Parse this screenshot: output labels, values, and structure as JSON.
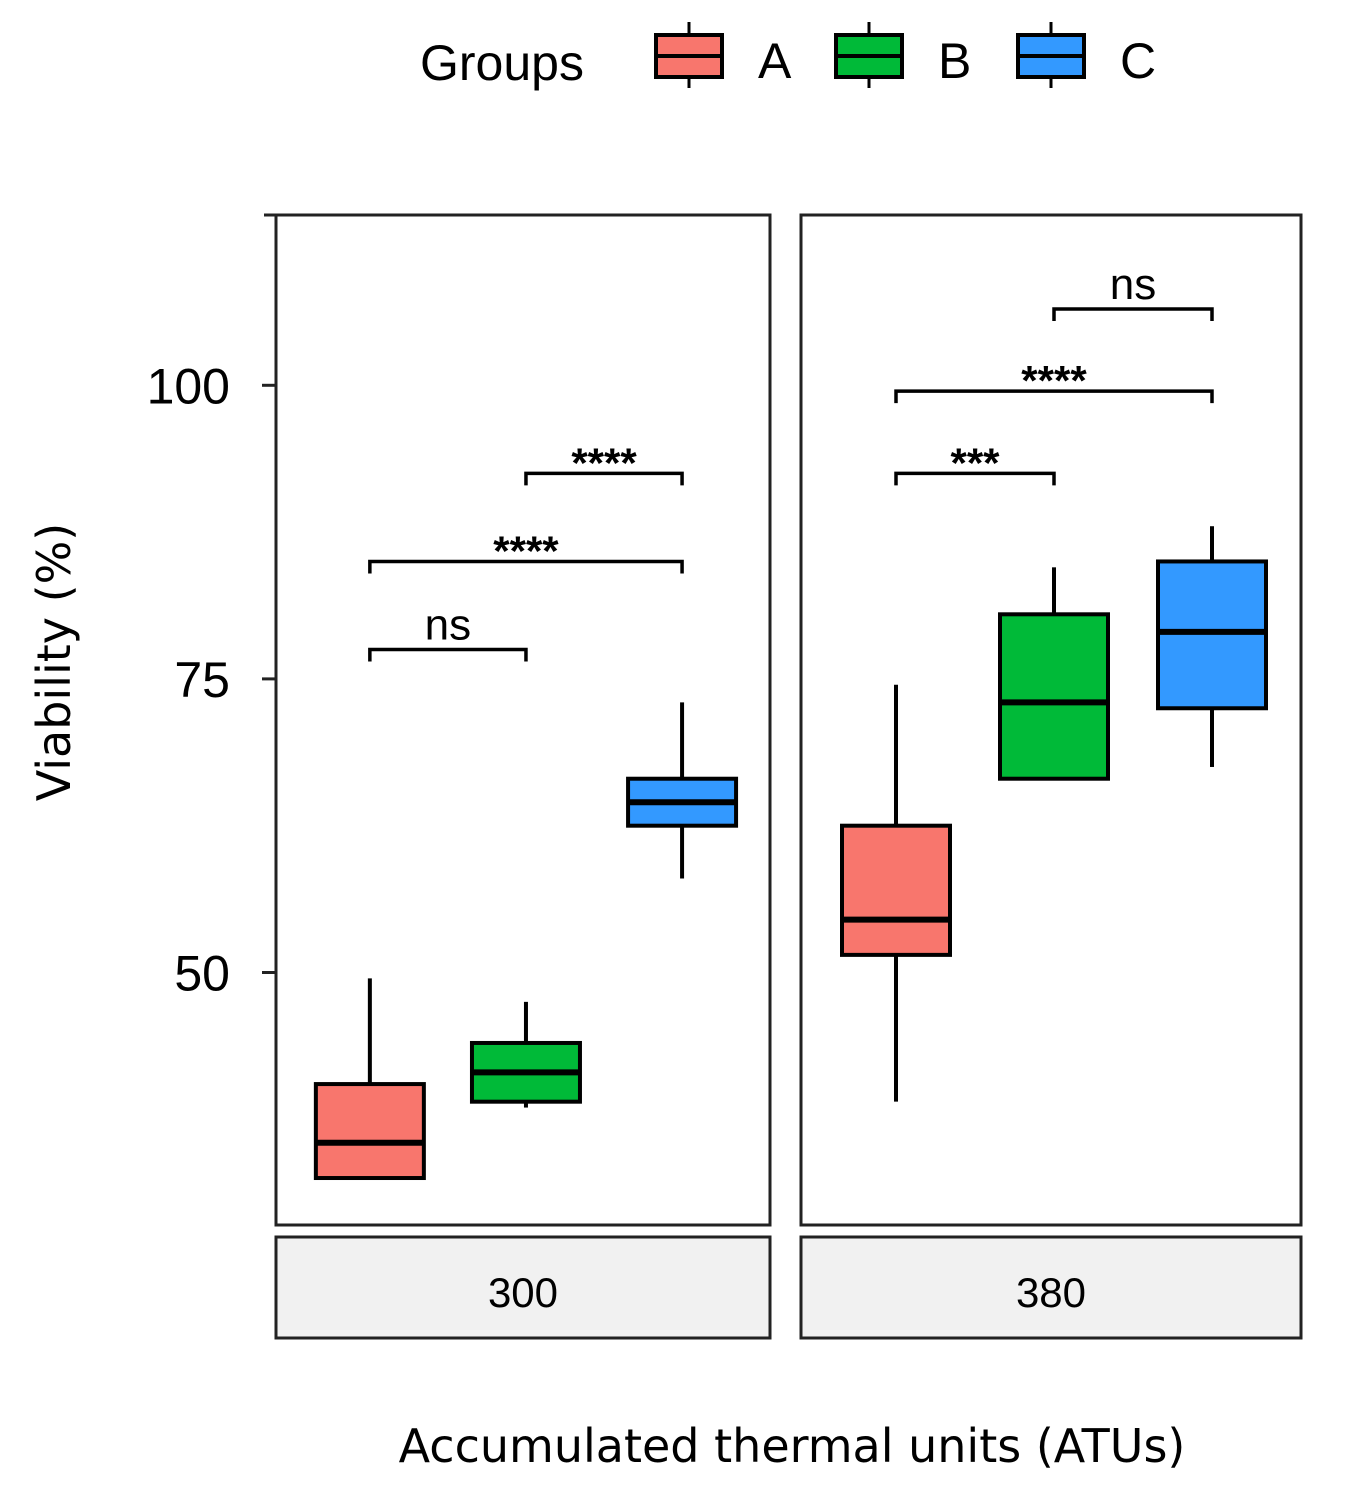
{
  "chart_data": {
    "type": "boxplot",
    "legend": {
      "title": "Groups",
      "position": "top",
      "entries": [
        "A",
        "B",
        "C"
      ]
    },
    "colors": {
      "A": "#f8766d",
      "B": "#00ba38",
      "C": "#3399ff"
    },
    "ylabel": "Viability (%)",
    "xlabel": "Accumulated thermal units (ATUs)",
    "ylim": [
      28.5,
      114.5
    ],
    "yticks": [
      50,
      75,
      100
    ],
    "facets": [
      {
        "label": "300",
        "boxes": [
          {
            "group": "A",
            "whisker_low": 32.5,
            "q1": 32.5,
            "median": 35.5,
            "q3": 40.5,
            "whisker_high": 49.5
          },
          {
            "group": "B",
            "whisker_low": 38.5,
            "q1": 39,
            "median": 41.5,
            "q3": 44,
            "whisker_high": 47.5
          },
          {
            "group": "C",
            "whisker_low": 58,
            "q1": 62.5,
            "median": 64.5,
            "q3": 66.5,
            "whisker_high": 73
          }
        ],
        "comparisons": [
          {
            "from": "A",
            "to": "B",
            "y": 77.5,
            "label": "ns"
          },
          {
            "from": "A",
            "to": "C",
            "y": 85,
            "label": "****"
          },
          {
            "from": "B",
            "to": "C",
            "y": 92.5,
            "label": "****"
          }
        ]
      },
      {
        "label": "380",
        "boxes": [
          {
            "group": "A",
            "whisker_low": 39,
            "q1": 51.5,
            "median": 54.5,
            "q3": 62.5,
            "whisker_high": 74.5
          },
          {
            "group": "B",
            "whisker_low": 66.5,
            "q1": 66.5,
            "median": 73,
            "q3": 80.5,
            "whisker_high": 84.5
          },
          {
            "group": "C",
            "whisker_low": 67.5,
            "q1": 72.5,
            "median": 79,
            "q3": 85,
            "whisker_high": 88
          }
        ],
        "comparisons": [
          {
            "from": "A",
            "to": "B",
            "y": 92.5,
            "label": "***"
          },
          {
            "from": "A",
            "to": "C",
            "y": 99.5,
            "label": "****"
          },
          {
            "from": "B",
            "to": "C",
            "y": 106.5,
            "label": "ns"
          }
        ]
      }
    ]
  }
}
